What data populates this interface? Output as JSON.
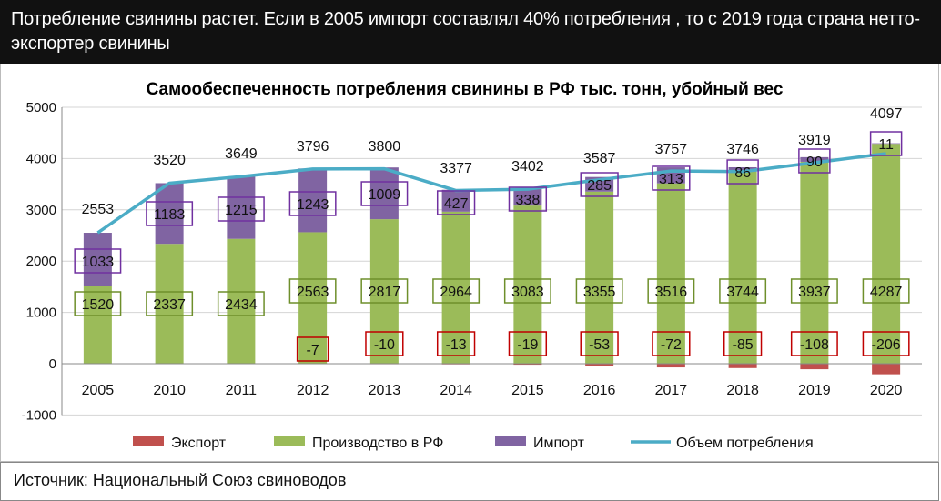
{
  "header": {
    "text": "Потребление свинины растет. Если в 2005 импорт составлял 40% потребления , то с 2019 года страна нетто-экспортер свинины"
  },
  "footer": {
    "source": "Источник: Национальный Союз свиноводов"
  },
  "colors": {
    "export": "#c0504d",
    "production": "#9bbb59",
    "import": "#8064a2",
    "consumption": "#4bacc6"
  },
  "chart_data": {
    "type": "bar",
    "stacked": true,
    "title": "Самообеспеченность потребления свинины в РФ тыс. тонн, убойный вес",
    "categories": [
      "2005",
      "2010",
      "2011",
      "2012",
      "2013",
      "2014",
      "2015",
      "2016",
      "2017",
      "2018",
      "2019",
      "2020"
    ],
    "series": [
      {
        "name": "Экспорт",
        "kind": "bar",
        "values": [
          0,
          0,
          0,
          -7,
          -10,
          -13,
          -19,
          -53,
          -72,
          -85,
          -108,
          -206
        ]
      },
      {
        "name": "Производство в РФ",
        "kind": "bar",
        "values": [
          1520,
          2337,
          2434,
          2563,
          2817,
          2964,
          3083,
          3355,
          3516,
          3744,
          3937,
          4287
        ]
      },
      {
        "name": "Импорт",
        "kind": "bar",
        "values": [
          1033,
          1183,
          1215,
          1243,
          1009,
          427,
          338,
          285,
          313,
          86,
          90,
          11
        ]
      },
      {
        "name": "Объем потребления",
        "kind": "line",
        "values": [
          2553,
          3520,
          3649,
          3796,
          3800,
          3377,
          3402,
          3587,
          3757,
          3746,
          3919,
          4097
        ]
      }
    ],
    "export_labels": [
      "",
      "",
      "",
      "-7",
      "-10",
      "-13",
      "-19",
      "-53",
      "-72",
      "-85",
      "-108",
      "-206"
    ],
    "production_labels": [
      "1520",
      "2337",
      "2434",
      "2563",
      "2817",
      "2964",
      "3083",
      "3355",
      "3516",
      "3744",
      "3937",
      "4287"
    ],
    "import_labels": [
      "1033",
      "1183",
      "1215",
      "1243",
      "1009",
      "427",
      "338",
      "285",
      "313",
      "86",
      "90",
      "11"
    ],
    "consumption_labels": [
      "2553",
      "3520",
      "3649",
      "3796",
      "3800",
      "3377",
      "3402",
      "3587",
      "3757",
      "3746",
      "3919",
      "4097"
    ],
    "yticks": [
      "-1000",
      "0",
      "1000",
      "2000",
      "3000",
      "4000",
      "5000"
    ],
    "ylim": [
      -1000,
      5000
    ],
    "grid": true,
    "legend_position": "bottom"
  }
}
